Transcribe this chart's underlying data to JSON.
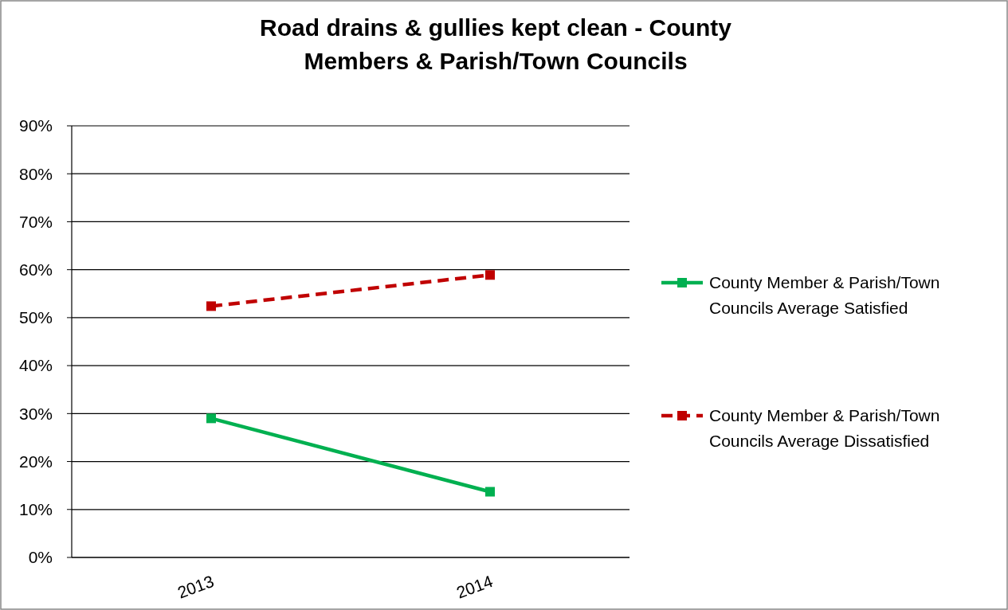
{
  "chart_data": {
    "type": "line",
    "title": "Road drains & gullies kept clean - County Members & Parish/Town Councils",
    "categories": [
      "2013",
      "2014"
    ],
    "series": [
      {
        "name": "County Member & Parish/Town Councils Average Satisfied",
        "color": "#00b050",
        "values": [
          29,
          13.7
        ],
        "line_style": "solid"
      },
      {
        "name": "County Member & Parish/Town Councils Average Dissatisfied",
        "color": "#c00000",
        "values": [
          52.4,
          58.9
        ],
        "line_style": "dashed"
      }
    ],
    "ylim": [
      0,
      90
    ],
    "yticks": [
      {
        "value": 0,
        "label": "0%"
      },
      {
        "value": 10,
        "label": "10%"
      },
      {
        "value": 20,
        "label": "20%"
      },
      {
        "value": 30,
        "label": "30%"
      },
      {
        "value": 40,
        "label": "40%"
      },
      {
        "value": 50,
        "label": "50%"
      },
      {
        "value": 60,
        "label": "60%"
      },
      {
        "value": 70,
        "label": "70%"
      },
      {
        "value": 80,
        "label": "80%"
      },
      {
        "value": 90,
        "label": "90%"
      }
    ],
    "grid": "y",
    "legend": "right",
    "marker": "square"
  }
}
